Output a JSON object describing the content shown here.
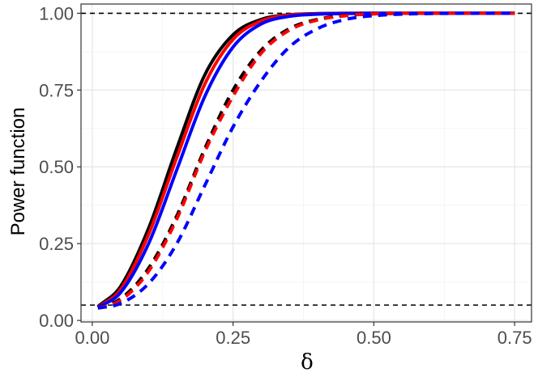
{
  "chart_data": {
    "type": "line",
    "xlabel": "δ",
    "ylabel": "Power function",
    "xlim": [
      -0.02,
      0.78
    ],
    "ylim": [
      -0.005,
      1.03
    ],
    "x_ticks": [
      "0.00",
      "0.25",
      "0.50",
      "0.75"
    ],
    "y_ticks": [
      "0.00",
      "0.25",
      "0.50",
      "0.75",
      "1.00"
    ],
    "grid": true,
    "legend": "none",
    "reference_lines": [
      {
        "y": 1.0,
        "style": "dashed",
        "color": "#000000"
      },
      {
        "y": 0.05,
        "style": "dashed",
        "color": "#000000"
      }
    ],
    "series": [
      {
        "color": "#000000",
        "dash": "solid",
        "x": [
          0.01,
          0.05,
          0.1,
          0.15,
          0.2,
          0.25,
          0.3,
          0.35,
          0.4,
          0.45,
          0.5,
          0.6,
          0.75
        ],
        "y": [
          0.045,
          0.11,
          0.3,
          0.56,
          0.8,
          0.93,
          0.98,
          0.995,
          0.999,
          1.0,
          1.0,
          1.0,
          1.0
        ]
      },
      {
        "color": "#ff0000",
        "dash": "solid",
        "x": [
          0.01,
          0.05,
          0.1,
          0.15,
          0.2,
          0.25,
          0.3,
          0.35,
          0.4,
          0.45,
          0.5,
          0.6,
          0.75
        ],
        "y": [
          0.043,
          0.1,
          0.28,
          0.53,
          0.77,
          0.915,
          0.975,
          0.994,
          0.998,
          1.0,
          1.0,
          1.0,
          1.0
        ]
      },
      {
        "color": "#0000ff",
        "dash": "solid",
        "x": [
          0.01,
          0.05,
          0.1,
          0.15,
          0.2,
          0.25,
          0.3,
          0.35,
          0.4,
          0.45,
          0.5,
          0.6,
          0.75
        ],
        "y": [
          0.042,
          0.09,
          0.25,
          0.49,
          0.73,
          0.89,
          0.965,
          0.99,
          0.997,
          0.999,
          1.0,
          1.0,
          1.0
        ]
      },
      {
        "color": "#000000",
        "dash": "dashed",
        "x": [
          0.01,
          0.05,
          0.1,
          0.15,
          0.2,
          0.25,
          0.3,
          0.35,
          0.4,
          0.45,
          0.5,
          0.6,
          0.75
        ],
        "y": [
          0.04,
          0.07,
          0.17,
          0.34,
          0.56,
          0.75,
          0.88,
          0.95,
          0.98,
          0.993,
          0.998,
          1.0,
          1.0
        ]
      },
      {
        "color": "#ff0000",
        "dash": "dashed",
        "x": [
          0.01,
          0.05,
          0.1,
          0.15,
          0.2,
          0.25,
          0.3,
          0.35,
          0.4,
          0.45,
          0.5,
          0.6,
          0.75
        ],
        "y": [
          0.04,
          0.065,
          0.16,
          0.33,
          0.55,
          0.73,
          0.87,
          0.945,
          0.978,
          0.992,
          0.998,
          1.0,
          1.0
        ]
      },
      {
        "color": "#0000ff",
        "dash": "dashed",
        "x": [
          0.01,
          0.05,
          0.1,
          0.15,
          0.2,
          0.25,
          0.3,
          0.35,
          0.4,
          0.45,
          0.5,
          0.6,
          0.75
        ],
        "y": [
          0.04,
          0.055,
          0.12,
          0.25,
          0.44,
          0.63,
          0.78,
          0.89,
          0.95,
          0.98,
          0.992,
          0.999,
          1.0
        ]
      }
    ]
  }
}
